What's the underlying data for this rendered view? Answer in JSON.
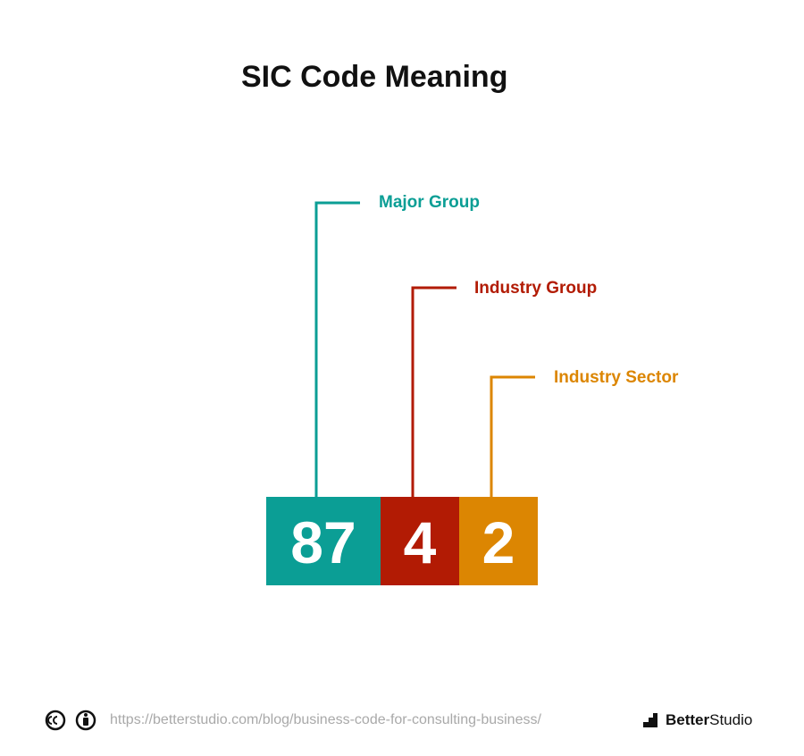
{
  "title": "SIC Code Meaning",
  "segments": [
    {
      "digits": "87",
      "label": "Major Group",
      "color": "#0b9e95"
    },
    {
      "digits": "4",
      "label": "Industry Group",
      "color": "#b21b04"
    },
    {
      "digits": "2",
      "label": "Industry Sector",
      "color": "#dc8602"
    }
  ],
  "footer": {
    "url": "https://betterstudio.com/blog/business-code-for-consulting-business/",
    "brand_bold": "Better",
    "brand_regular": "Studio"
  }
}
